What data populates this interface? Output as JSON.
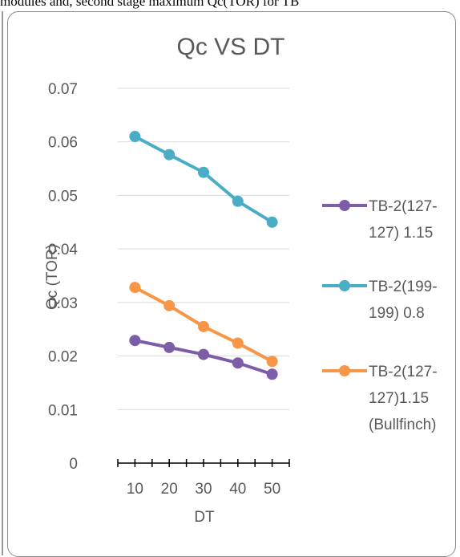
{
  "context_text": "modules and, second stage maximum Qc(TOR) for TB",
  "chart_data": {
    "type": "line",
    "title": "Qc VS DT",
    "xlabel": "DT",
    "ylabel": "Qc (TOR)",
    "categories": [
      "10",
      "20",
      "30",
      "40",
      "50"
    ],
    "ylim": [
      0,
      0.07
    ],
    "yticks": [
      "0",
      "0.01",
      "0.02",
      "0.03",
      "0.04",
      "0.05",
      "0.06",
      "0.07"
    ],
    "grid": true,
    "legend_position": "right",
    "series": [
      {
        "name": "TB-2(127-127) 1.15",
        "legend_lines": [
          "TB-2(127-",
          "127) 1.15"
        ],
        "color": "#7b5ea7",
        "values": [
          0.0229,
          0.0216,
          0.0203,
          0.0187,
          0.0166
        ]
      },
      {
        "name": "TB-2(199-199) 0.8",
        "legend_lines": [
          "TB-2(199-",
          "199) 0.8"
        ],
        "color": "#4bacc6",
        "values": [
          0.061,
          0.0576,
          0.0543,
          0.0489,
          0.045
        ]
      },
      {
        "name": "TB-2(127-127)1.15 (Bullfinch)",
        "legend_lines": [
          "TB-2(127-",
          "127)1.15",
          "(Bullfinch)"
        ],
        "color": "#f79646",
        "values": [
          0.0328,
          0.0294,
          0.0255,
          0.0224,
          0.019
        ]
      }
    ]
  }
}
